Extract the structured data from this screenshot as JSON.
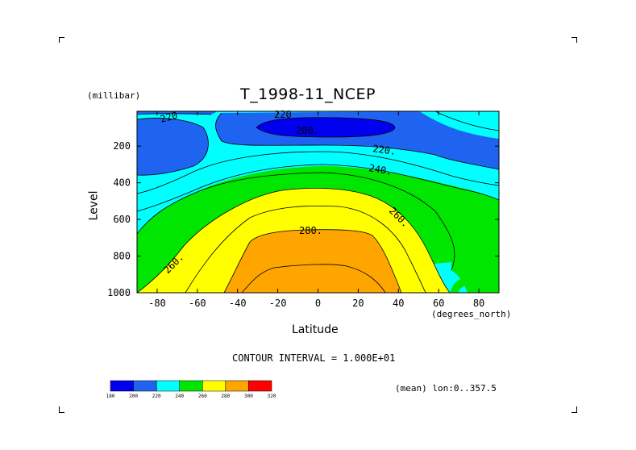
{
  "chart_data": {
    "type": "heatmap",
    "title": "T_1998-11_NCEP",
    "ylabel": "Level",
    "yunit": "(millibar)",
    "xlabel": "Latitude",
    "xunit": "(degrees_north)",
    "xlim": [
      -90,
      90
    ],
    "ylim": [
      1000,
      10
    ],
    "x_ticks": [
      -80,
      -60,
      -40,
      -20,
      0,
      20,
      40,
      60,
      80
    ],
    "y_ticks": [
      200,
      400,
      600,
      800,
      1000
    ],
    "contour_interval_text": "CONTOUR INTERVAL = 1.000E+01",
    "footer_text": "(mean) lon:0..357.5",
    "contour_labels": [
      "220",
      "200.",
      "220.",
      "240.",
      "260.",
      "280.",
      "260.",
      "220"
    ],
    "colorbar": {
      "levels": [
        180,
        200,
        220,
        240,
        260,
        280,
        300,
        320
      ],
      "colors": [
        "#0000ee",
        "#1e64f0",
        "#00ffff",
        "#00e600",
        "#ffff00",
        "#ffa500",
        "#ff0000"
      ]
    }
  }
}
